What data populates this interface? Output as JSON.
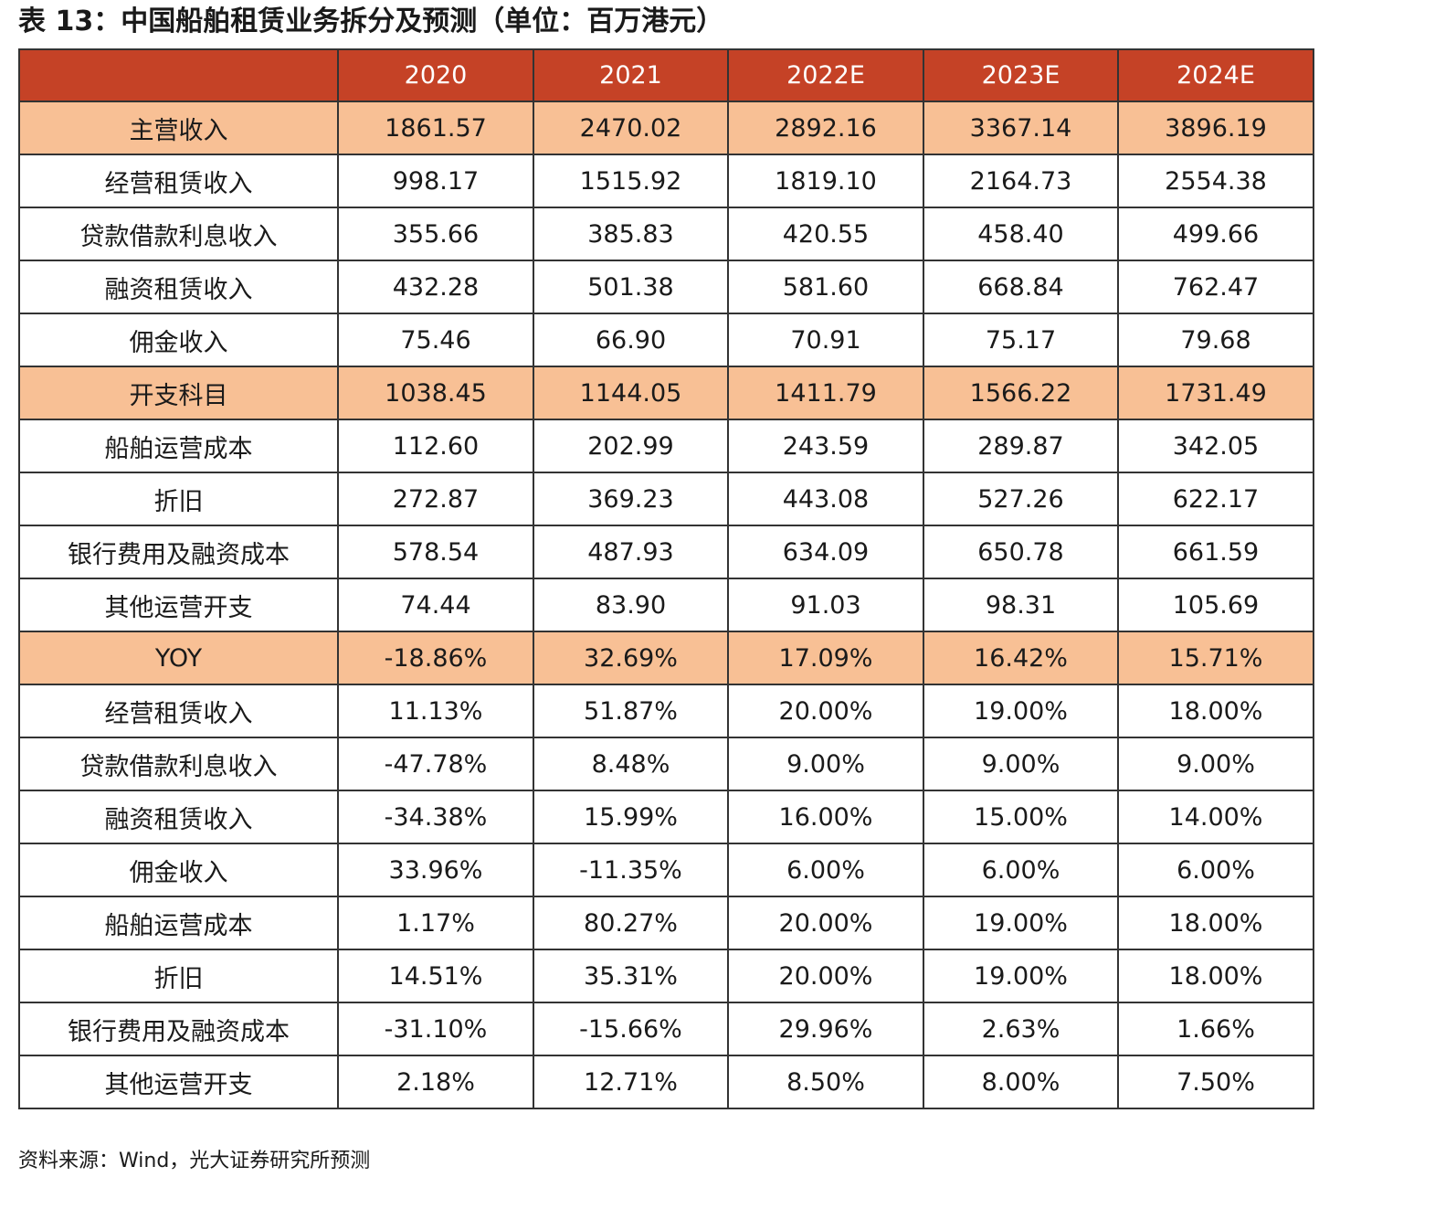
{
  "title": "表 13：中国船舶租赁业务拆分及预测（单位：百万港元）",
  "table": {
    "header": [
      "",
      "2020",
      "2021",
      "2022E",
      "2023E",
      "2024E"
    ],
    "rows": [
      [
        "主营收入",
        "1861.57",
        "2470.02",
        "2892.16",
        "3367.14",
        "3896.19"
      ],
      [
        "经营租赁收入",
        "998.17",
        "1515.92",
        "1819.10",
        "2164.73",
        "2554.38"
      ],
      [
        "贷款借款利息收入",
        "355.66",
        "385.83",
        "420.55",
        "458.40",
        "499.66"
      ],
      [
        "融资租赁收入",
        "432.28",
        "501.38",
        "581.60",
        "668.84",
        "762.47"
      ],
      [
        "佣金收入",
        "75.46",
        "66.90",
        "70.91",
        "75.17",
        "79.68"
      ],
      [
        "开支科目",
        "1038.45",
        "1144.05",
        "1411.79",
        "1566.22",
        "1731.49"
      ],
      [
        "船舶运营成本",
        "112.60",
        "202.99",
        "243.59",
        "289.87",
        "342.05"
      ],
      [
        "折旧",
        "272.87",
        "369.23",
        "443.08",
        "527.26",
        "622.17"
      ],
      [
        "银行费用及融资成本",
        "578.54",
        "487.93",
        "634.09",
        "650.78",
        "661.59"
      ],
      [
        "其他运营开支",
        "74.44",
        "83.90",
        "91.03",
        "98.31",
        "105.69"
      ],
      [
        "YOY",
        "-18.86%",
        "32.69%",
        "17.09%",
        "16.42%",
        "15.71%"
      ],
      [
        "经营租赁收入",
        "11.13%",
        "51.87%",
        "20.00%",
        "19.00%",
        "18.00%"
      ],
      [
        "贷款借款利息收入",
        "-47.78%",
        "8.48%",
        "9.00%",
        "9.00%",
        "9.00%"
      ],
      [
        "融资租赁收入",
        "-34.38%",
        "15.99%",
        "16.00%",
        "15.00%",
        "14.00%"
      ],
      [
        "佣金收入",
        "33.96%",
        "-11.35%",
        "6.00%",
        "6.00%",
        "6.00%"
      ],
      [
        "船舶运营成本",
        "1.17%",
        "80.27%",
        "20.00%",
        "19.00%",
        "18.00%"
      ],
      [
        "折旧",
        "14.51%",
        "35.31%",
        "20.00%",
        "19.00%",
        "18.00%"
      ],
      [
        "银行费用及融资成本",
        "-31.10%",
        "-15.66%",
        "29.96%",
        "2.63%",
        "1.66%"
      ],
      [
        "其他运营开支",
        "2.18%",
        "12.71%",
        "8.50%",
        "8.00%",
        "7.50%"
      ]
    ]
  },
  "source": "资料来源：Wind，光大证券研究所预测"
}
